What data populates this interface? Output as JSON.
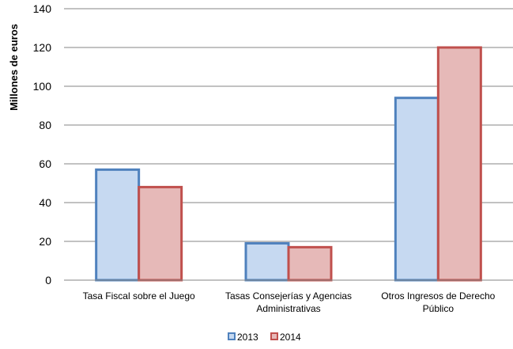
{
  "chart_data": {
    "type": "bar",
    "title": "",
    "xlabel": "",
    "ylabel": "Millones de euros",
    "ylim": [
      0,
      140
    ],
    "yticks": [
      0,
      20,
      40,
      60,
      80,
      100,
      120,
      140
    ],
    "grid": true,
    "legend": "bottom",
    "categories": [
      [
        "Tasa Fiscal sobre el Juego"
      ],
      [
        "Tasas Consejerías y Agencias",
        "Administrativas"
      ],
      [
        "Otros Ingresos de Derecho",
        "Público"
      ]
    ],
    "series": [
      {
        "name": "2013",
        "values": [
          57,
          19,
          94
        ],
        "fill": "#c6d9f1",
        "stroke": "#4f81bd"
      },
      {
        "name": "2014",
        "values": [
          48,
          17,
          120
        ],
        "fill": "#e6b9b8",
        "stroke": "#c0504d"
      }
    ]
  }
}
